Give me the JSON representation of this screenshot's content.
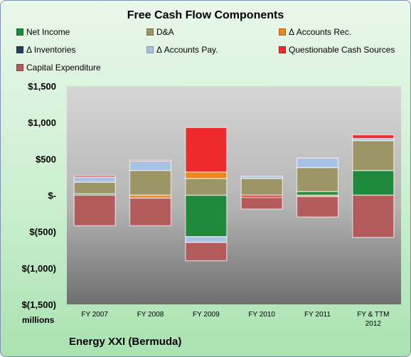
{
  "chart_data": {
    "type": "bar",
    "title": "Free Cash Flow Components",
    "unit_label": "millions",
    "company": "Energy XXI (Bermuda)",
    "categories": [
      "FY 2007",
      "FY 2008",
      "FY 2009",
      "FY 2010",
      "FY 2011",
      "FY & TTM 2012"
    ],
    "y_ticks": [
      "$1,500",
      "$1,000",
      "$500",
      "$-",
      "$(500)",
      "$(1,000)",
      "$(1,500)"
    ],
    "ylim": [
      -1500,
      1500
    ],
    "grid": false,
    "legend_position": "top",
    "series": [
      {
        "name": "Net Income",
        "color": "#1f8a3c",
        "values": [
          20,
          0,
          -570,
          0,
          50,
          340
        ]
      },
      {
        "name": "D&A",
        "color": "#9c9566",
        "values": [
          160,
          340,
          230,
          230,
          330,
          410
        ]
      },
      {
        "name": "Δ Accounts Rec.",
        "color": "#f0871e",
        "values": [
          0,
          -40,
          90,
          0,
          -20,
          0
        ]
      },
      {
        "name": "Δ Inventories",
        "color": "#243e58",
        "values": [
          0,
          0,
          0,
          0,
          0,
          0
        ]
      },
      {
        "name": "Δ Accounts Pay.",
        "color": "#a8c2e6",
        "values": [
          70,
          130,
          -80,
          30,
          130,
          30
        ]
      },
      {
        "name": "Questionable Cash Sources",
        "color": "#ee2a2a",
        "values": [
          20,
          10,
          610,
          -30,
          0,
          50
        ]
      },
      {
        "name": "Capital Expenditure",
        "color": "#b35a5a",
        "values": [
          -420,
          -380,
          -250,
          -160,
          -280,
          -580
        ]
      }
    ]
  }
}
